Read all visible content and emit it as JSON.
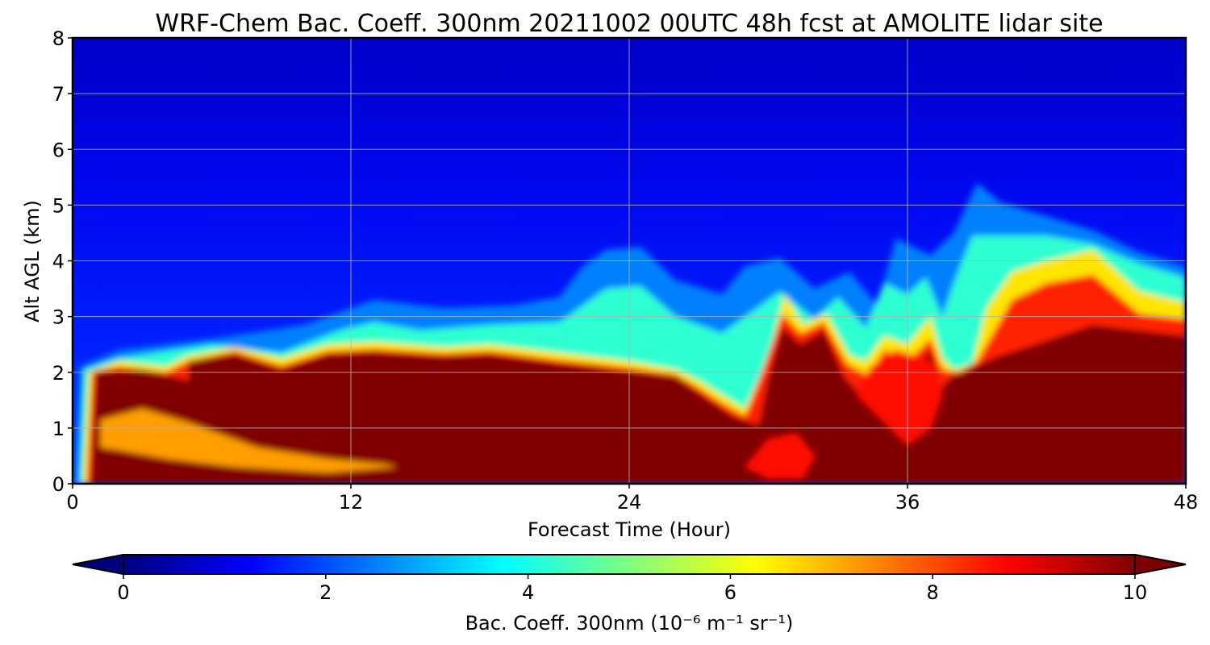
{
  "chart_data": {
    "type": "heatmap",
    "title": "WRF-Chem Bac. Coeff. 300nm  20211002 00UTC 48h fcst at AMOLITE lidar site",
    "xlabel": "Forecast Time (Hour)",
    "ylabel": "Alt AGL (km)",
    "xlim": [
      0,
      48
    ],
    "ylim": [
      0,
      8
    ],
    "x_ticks": [
      "0",
      "12",
      "24",
      "36",
      "48"
    ],
    "x_tick_values": [
      0,
      12,
      24,
      36,
      48
    ],
    "y_ticks": [
      "0",
      "1",
      "2",
      "3",
      "4",
      "5",
      "6",
      "7",
      "8"
    ],
    "y_tick_values": [
      0,
      1,
      2,
      3,
      4,
      5,
      6,
      7,
      8
    ],
    "grid": true,
    "colormap": "jet",
    "colorbar": {
      "label": "Bac. Coeff. 300nm  (10⁻⁶ m⁻¹ sr⁻¹)",
      "range": [
        0,
        10
      ],
      "ticks": [
        "0",
        "2",
        "4",
        "6",
        "8",
        "10"
      ],
      "tick_values": [
        0,
        2,
        4,
        6,
        8,
        10
      ],
      "extend": "both",
      "placement": "bottom"
    },
    "layers": [
      {
        "value": 2.5,
        "points": [
          [
            0.1,
            0
          ],
          [
            0.3,
            2.1
          ],
          [
            2,
            2.4
          ],
          [
            6,
            2.6
          ],
          [
            10,
            2.85
          ],
          [
            13,
            3.3
          ],
          [
            16,
            3.15
          ],
          [
            19,
            3.2
          ],
          [
            21,
            3.35
          ],
          [
            22,
            3.9
          ],
          [
            23,
            4.2
          ],
          [
            24.5,
            4.25
          ],
          [
            26,
            3.65
          ],
          [
            28,
            3.4
          ],
          [
            29,
            3.9
          ],
          [
            30.5,
            4.05
          ],
          [
            32,
            3.5
          ],
          [
            33.5,
            3.8
          ],
          [
            34.7,
            3.2
          ],
          [
            35.5,
            4.4
          ],
          [
            37,
            4.1
          ],
          [
            38,
            4.5
          ],
          [
            39,
            5.4
          ],
          [
            40,
            5.05
          ],
          [
            42,
            4.8
          ],
          [
            44,
            4.55
          ],
          [
            46,
            4.15
          ],
          [
            48,
            3.9
          ],
          [
            48,
            0
          ]
        ]
      },
      {
        "value": 4.2,
        "points": [
          [
            0.3,
            0
          ],
          [
            0.5,
            2.05
          ],
          [
            2,
            2.25
          ],
          [
            6,
            2.5
          ],
          [
            9,
            2.35
          ],
          [
            11.5,
            2.75
          ],
          [
            13,
            2.9
          ],
          [
            15,
            2.75
          ],
          [
            18,
            2.85
          ],
          [
            21,
            2.9
          ],
          [
            23,
            3.5
          ],
          [
            24.5,
            3.55
          ],
          [
            26,
            3.0
          ],
          [
            28,
            2.7
          ],
          [
            29,
            3.0
          ],
          [
            30.5,
            3.45
          ],
          [
            32,
            2.95
          ],
          [
            33,
            3.35
          ],
          [
            34.2,
            2.8
          ],
          [
            35,
            3.6
          ],
          [
            36,
            3.4
          ],
          [
            36.8,
            3.7
          ],
          [
            37.5,
            3.0
          ],
          [
            38,
            3.6
          ],
          [
            38.8,
            4.45
          ],
          [
            40,
            4.45
          ],
          [
            42,
            4.45
          ],
          [
            44,
            4.3
          ],
          [
            46,
            3.95
          ],
          [
            48,
            3.7
          ],
          [
            48,
            0
          ]
        ]
      },
      {
        "value": 6.5,
        "points": [
          [
            0.45,
            0
          ],
          [
            0.7,
            2.0
          ],
          [
            2,
            2.2
          ],
          [
            4,
            2.1
          ],
          [
            5,
            2.3
          ],
          [
            7,
            2.45
          ],
          [
            9,
            2.25
          ],
          [
            11,
            2.5
          ],
          [
            13,
            2.55
          ],
          [
            16,
            2.45
          ],
          [
            18,
            2.5
          ],
          [
            21,
            2.35
          ],
          [
            24,
            2.2
          ],
          [
            26,
            2.05
          ],
          [
            27,
            1.85
          ],
          [
            28,
            1.6
          ],
          [
            29,
            1.35
          ],
          [
            30,
            2.25
          ],
          [
            30.7,
            3.4
          ],
          [
            31.5,
            2.85
          ],
          [
            32.5,
            3.05
          ],
          [
            33.5,
            2.3
          ],
          [
            34.2,
            2.2
          ],
          [
            35,
            2.65
          ],
          [
            36,
            2.5
          ],
          [
            37,
            3.0
          ],
          [
            37.5,
            2.25
          ],
          [
            38,
            2.05
          ],
          [
            38.8,
            2.15
          ],
          [
            39.4,
            3.15
          ],
          [
            40.5,
            3.8
          ],
          [
            42,
            4.0
          ],
          [
            44,
            4.2
          ],
          [
            46,
            3.45
          ],
          [
            48,
            3.25
          ],
          [
            48,
            0
          ]
        ]
      },
      {
        "value": 8.4,
        "points": [
          [
            0.6,
            0
          ],
          [
            0.85,
            2.02
          ],
          [
            2,
            2.1
          ],
          [
            4,
            2.0
          ],
          [
            5,
            2.2
          ],
          [
            7,
            2.38
          ],
          [
            9,
            2.12
          ],
          [
            11,
            2.38
          ],
          [
            13,
            2.42
          ],
          [
            16,
            2.34
          ],
          [
            18,
            2.38
          ],
          [
            21,
            2.22
          ],
          [
            24,
            2.08
          ],
          [
            26,
            1.96
          ],
          [
            27,
            1.72
          ],
          [
            28,
            1.45
          ],
          [
            29,
            1.22
          ],
          [
            29.8,
            2.1
          ],
          [
            30.6,
            3.05
          ],
          [
            31.4,
            2.7
          ],
          [
            32.4,
            2.9
          ],
          [
            33.4,
            2.15
          ],
          [
            34.3,
            1.95
          ],
          [
            35,
            2.4
          ],
          [
            36,
            2.2
          ],
          [
            37,
            2.6
          ],
          [
            37.5,
            2.05
          ],
          [
            38.2,
            2.0
          ],
          [
            39,
            2.2
          ],
          [
            40.5,
            3.3
          ],
          [
            42,
            3.6
          ],
          [
            44,
            3.75
          ],
          [
            46,
            3.05
          ],
          [
            48,
            2.95
          ],
          [
            48,
            0
          ]
        ]
      },
      {
        "value": 10,
        "points": [
          [
            0.8,
            0
          ],
          [
            1.0,
            2.0
          ],
          [
            3,
            2.05
          ],
          [
            5,
            1.85
          ],
          [
            5,
            2.2
          ],
          [
            7,
            2.32
          ],
          [
            9,
            2.05
          ],
          [
            11,
            2.32
          ],
          [
            13,
            2.36
          ],
          [
            16,
            2.28
          ],
          [
            18,
            2.32
          ],
          [
            21,
            2.15
          ],
          [
            24,
            2.02
          ],
          [
            26,
            1.92
          ],
          [
            27.3,
            1.55
          ],
          [
            28.5,
            1.2
          ],
          [
            29.6,
            1.05
          ],
          [
            30,
            1.9
          ],
          [
            30.6,
            2.8
          ],
          [
            31.4,
            2.5
          ],
          [
            32.4,
            2.75
          ],
          [
            33.3,
            1.9
          ],
          [
            34.2,
            1.5
          ],
          [
            35,
            2.15
          ],
          [
            36,
            1.9
          ],
          [
            37,
            2.4
          ],
          [
            37.4,
            1.7
          ],
          [
            38,
            1.95
          ],
          [
            40,
            2.3
          ],
          [
            41.5,
            2.5
          ],
          [
            44,
            2.85
          ],
          [
            46,
            2.75
          ],
          [
            48,
            2.65
          ],
          [
            48,
            0
          ]
        ]
      }
    ],
    "inner_bands": [
      {
        "value": 7.2,
        "points": [
          [
            1.2,
            1.15
          ],
          [
            3,
            1.35
          ],
          [
            5,
            1.1
          ],
          [
            8,
            0.65
          ],
          [
            11,
            0.45
          ],
          [
            13.5,
            0.35
          ],
          [
            14,
            0.3
          ],
          [
            11,
            0.2
          ],
          [
            7,
            0.3
          ],
          [
            4,
            0.45
          ],
          [
            2,
            0.6
          ],
          [
            1.2,
            0.65
          ]
        ]
      },
      {
        "value": 8.6,
        "points": [
          [
            29,
            0.3
          ],
          [
            30,
            0.8
          ],
          [
            31.2,
            0.9
          ],
          [
            32,
            0.5
          ],
          [
            31.5,
            0.1
          ],
          [
            30,
            0.1
          ]
        ]
      },
      {
        "value": 8.6,
        "points": [
          [
            33.8,
            1.6
          ],
          [
            35,
            1.1
          ],
          [
            36,
            0.7
          ],
          [
            37,
            1.0
          ],
          [
            37.5,
            1.6
          ],
          [
            37,
            2.2
          ],
          [
            35.5,
            2.4
          ],
          [
            34.4,
            2.1
          ]
        ]
      }
    ]
  }
}
